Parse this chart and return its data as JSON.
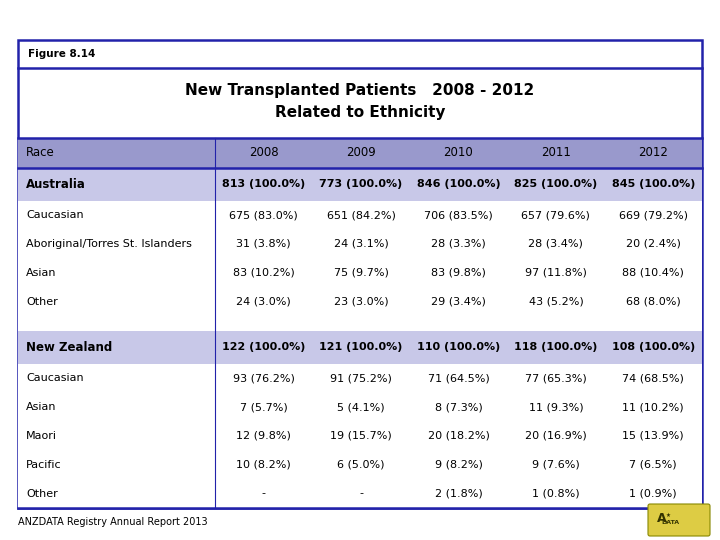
{
  "figure_label": "Figure 8.14",
  "title_line1": "New Transplanted Patients   2008 - 2012",
  "title_line2": "Related to Ethnicity",
  "header_bg": "#9999cc",
  "subheader_bg": "#c8c8e8",
  "columns": [
    "Race",
    "2008",
    "2009",
    "2010",
    "2011",
    "2012"
  ],
  "rows": [
    {
      "label": "Australia",
      "bold": true,
      "bg": "#c8c8e8",
      "vals": [
        "813 (100.0%)",
        "773 (100.0%)",
        "846 (100.0%)",
        "825 (100.0%)",
        "845 (100.0%)"
      ]
    },
    {
      "label": "Caucasian",
      "bold": false,
      "bg": "#ffffff",
      "vals": [
        "675 (83.0%)",
        "651 (84.2%)",
        "706 (83.5%)",
        "657 (79.6%)",
        "669 (79.2%)"
      ]
    },
    {
      "label": "Aboriginal/Torres St. Islanders",
      "bold": false,
      "bg": "#ffffff",
      "vals": [
        "31 (3.8%)",
        "24 (3.1%)",
        "28 (3.3%)",
        "28 (3.4%)",
        "20 (2.4%)"
      ]
    },
    {
      "label": "Asian",
      "bold": false,
      "bg": "#ffffff",
      "vals": [
        "83 (10.2%)",
        "75 (9.7%)",
        "83 (9.8%)",
        "97 (11.8%)",
        "88 (10.4%)"
      ]
    },
    {
      "label": "Other",
      "bold": false,
      "bg": "#ffffff",
      "vals": [
        "24 (3.0%)",
        "23 (3.0%)",
        "29 (3.4%)",
        "43 (5.2%)",
        "68 (8.0%)"
      ]
    },
    {
      "label": "",
      "bold": false,
      "bg": "#ffffff",
      "vals": [
        "",
        "",
        "",
        "",
        ""
      ]
    },
    {
      "label": "New Zealand",
      "bold": true,
      "bg": "#c8c8e8",
      "vals": [
        "122 (100.0%)",
        "121 (100.0%)",
        "110 (100.0%)",
        "118 (100.0%)",
        "108 (100.0%)"
      ]
    },
    {
      "label": "Caucasian",
      "bold": false,
      "bg": "#ffffff",
      "vals": [
        "93 (76.2%)",
        "91 (75.2%)",
        "71 (64.5%)",
        "77 (65.3%)",
        "74 (68.5%)"
      ]
    },
    {
      "label": "Asian",
      "bold": false,
      "bg": "#ffffff",
      "vals": [
        "7 (5.7%)",
        "5 (4.1%)",
        "8 (7.3%)",
        "11 (9.3%)",
        "11 (10.2%)"
      ]
    },
    {
      "label": "Maori",
      "bold": false,
      "bg": "#ffffff",
      "vals": [
        "12 (9.8%)",
        "19 (15.7%)",
        "20 (18.2%)",
        "20 (16.9%)",
        "15 (13.9%)"
      ]
    },
    {
      "label": "Pacific",
      "bold": false,
      "bg": "#ffffff",
      "vals": [
        "10 (8.2%)",
        "6 (5.0%)",
        "9 (8.2%)",
        "9 (7.6%)",
        "7 (6.5%)"
      ]
    },
    {
      "label": "Other",
      "bold": false,
      "bg": "#ffffff",
      "vals": [
        "-",
        "-",
        "2 (1.8%)",
        "1 (0.8%)",
        "1 (0.9%)"
      ]
    }
  ],
  "footer": "ANZDATA Registry Annual Report 2013",
  "border_color": "#2222aa"
}
